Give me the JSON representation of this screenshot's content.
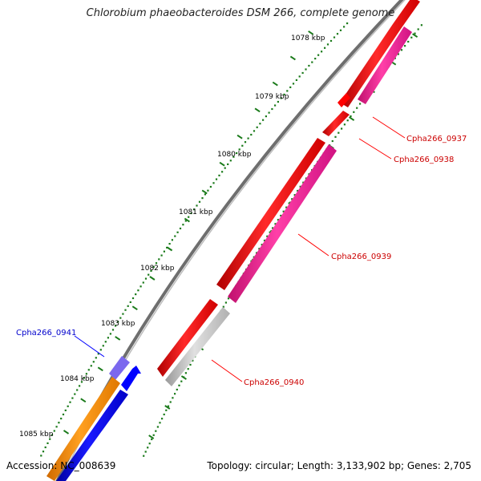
{
  "title": "Chlorobium phaeobacteroides DSM 266, complete genome",
  "footer": {
    "accession": "Accession: NC_008639",
    "summary": "Topology: circular; Length: 3,133,902 bp; Genes: 2,705"
  },
  "ruler": {
    "ticks": [
      "1078 kbp",
      "1079 kbp",
      "1080 kbp",
      "1081 kbp",
      "1082 kbp",
      "1083 kbp",
      "1084 kbp",
      "1085 kbp"
    ],
    "tick_color": "#1a7a1a"
  },
  "genes": [
    {
      "label": "Cpha266_0937",
      "color": "#ff0000",
      "label_color": "#cc0000"
    },
    {
      "label": "Cpha266_0938",
      "color": "#ff0000",
      "label_color": "#cc0000"
    },
    {
      "label": "Cpha266_0939",
      "color": "#ff1493",
      "label_color": "#cc0000"
    },
    {
      "label": "Cpha266_0940",
      "color": "#c8c8c8",
      "label_color": "#cc0000"
    },
    {
      "label": "Cpha266_0941",
      "color": "#7b68ee",
      "label_color": "#0000cc"
    }
  ],
  "colors": {
    "backbone": "#808080",
    "red_gene": "#ff0000",
    "pink_gene": "#ff1493",
    "grey_gene": "#c8c8c8",
    "blue_gene": "#0000ff",
    "orange_gene": "#ff8c00",
    "purple_gene": "#7b68ee"
  }
}
